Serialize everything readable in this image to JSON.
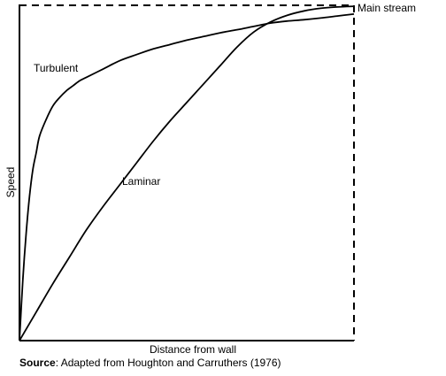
{
  "chart_data": {
    "type": "line",
    "title": "",
    "xlabel": "Distance from wall",
    "ylabel": "Speed",
    "xlim": [
      0,
      100
    ],
    "ylim": [
      0,
      100
    ],
    "grid": false,
    "legend": "none",
    "reference_line": {
      "label": "Main stream",
      "y": 100
    },
    "series": [
      {
        "name": "Turbulent",
        "x": [
          0,
          1,
          2,
          3,
          4,
          5,
          6,
          8,
          10,
          12,
          14,
          16,
          18,
          20,
          25,
          30,
          35,
          40,
          45,
          50,
          55,
          60,
          65,
          70,
          75,
          80,
          85,
          90,
          95,
          100
        ],
        "y": [
          0,
          18,
          32,
          43,
          51,
          56,
          61,
          66,
          70,
          72.5,
          74.5,
          76,
          77.5,
          78.5,
          81,
          83.5,
          85.3,
          87,
          88.3,
          89.6,
          90.7,
          91.8,
          92.7,
          93.7,
          94.7,
          95.3,
          95.7,
          96.2,
          96.8,
          97.4
        ]
      },
      {
        "name": "Laminar",
        "x": [
          0,
          5,
          10,
          15,
          20,
          25,
          30,
          35,
          40,
          45,
          50,
          55,
          60,
          65,
          70,
          75,
          80,
          85,
          90,
          95,
          100
        ],
        "y": [
          0,
          8.5,
          17,
          25,
          33,
          40,
          46.5,
          53,
          59.5,
          65.5,
          71,
          76.5,
          82,
          87.5,
          92,
          95,
          97,
          98.3,
          99.1,
          99.5,
          99.7
        ]
      }
    ],
    "annotations": [
      {
        "text": "Turbulent",
        "series": "Turbulent"
      },
      {
        "text": "Laminar",
        "series": "Laminar"
      }
    ]
  },
  "source": {
    "label": "Source",
    "text": ": Adapted from Houghton and Carruthers (1976)"
  }
}
